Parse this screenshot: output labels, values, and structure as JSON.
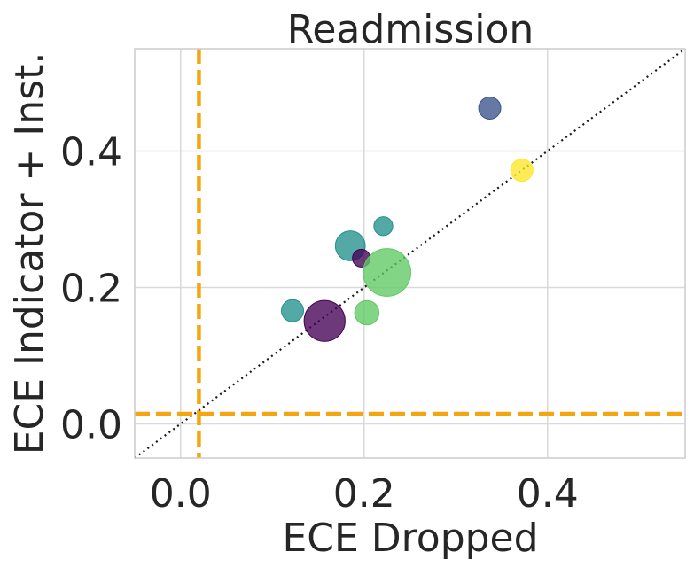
{
  "chart_data": {
    "type": "scatter",
    "title": "Readmission",
    "xlabel": "ECE Dropped",
    "ylabel": "ECE Indicator + Inst.",
    "xlim": [
      -0.05,
      0.55
    ],
    "ylim": [
      -0.05,
      0.55
    ],
    "x_ticks": [
      0.0,
      0.2,
      0.4
    ],
    "y_ticks": [
      0.0,
      0.2,
      0.4
    ],
    "x_tick_labels": [
      "0.0",
      "0.2",
      "0.4"
    ],
    "y_tick_labels": [
      "0.0",
      "0.2",
      "0.4"
    ],
    "grid": true,
    "identity_line": {
      "style": "dotted",
      "color": "#1a1a1a"
    },
    "reference_lines": [
      {
        "orientation": "vertical",
        "value": 0.02,
        "color": "#f5a50f",
        "style": "dashed"
      },
      {
        "orientation": "horizontal",
        "value": 0.015,
        "color": "#f5a50f",
        "style": "dashed"
      }
    ],
    "points": [
      {
        "x": 0.337,
        "y": 0.463,
        "size": 1.0,
        "color": "#3b528b"
      },
      {
        "x": 0.372,
        "y": 0.372,
        "size": 1.0,
        "color": "#fde725"
      },
      {
        "x": 0.221,
        "y": 0.29,
        "size": 0.85,
        "color": "#21918c"
      },
      {
        "x": 0.185,
        "y": 0.261,
        "size": 1.35,
        "color": "#21918c"
      },
      {
        "x": 0.197,
        "y": 0.243,
        "size": 0.8,
        "color": "#440154"
      },
      {
        "x": 0.225,
        "y": 0.222,
        "size": 2.15,
        "color": "#5ec962"
      },
      {
        "x": 0.122,
        "y": 0.166,
        "size": 1.0,
        "color": "#21918c"
      },
      {
        "x": 0.203,
        "y": 0.163,
        "size": 1.1,
        "color": "#5ec962"
      },
      {
        "x": 0.157,
        "y": 0.151,
        "size": 1.85,
        "color": "#440154"
      }
    ]
  }
}
